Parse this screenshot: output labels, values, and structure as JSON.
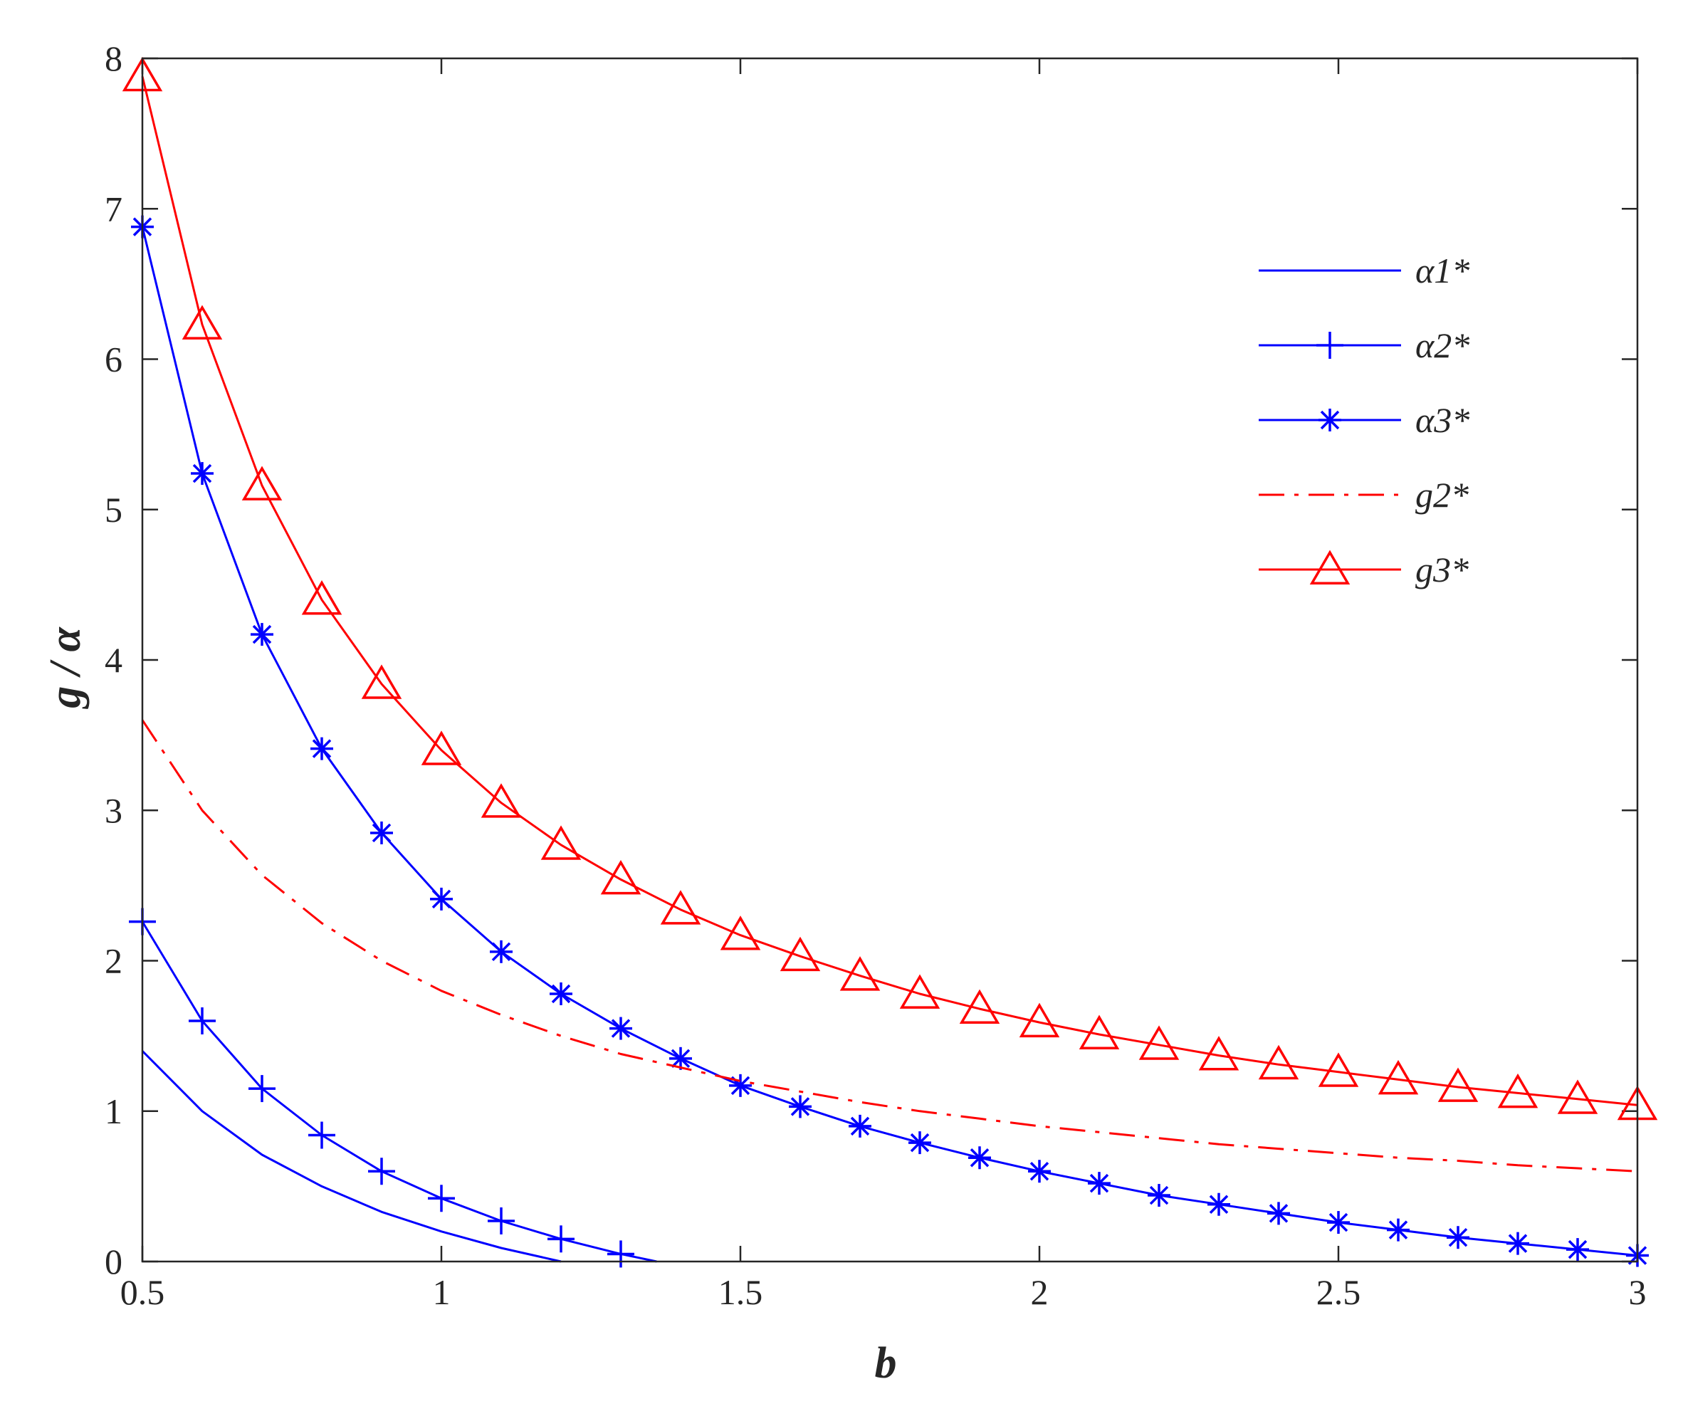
{
  "chart_data": {
    "type": "line",
    "title": "",
    "xlabel": "b",
    "ylabel": "g / α",
    "xlim": [
      0.5,
      3
    ],
    "ylim": [
      0,
      8
    ],
    "xticks": [
      0.5,
      1,
      1.5,
      2,
      2.5,
      3
    ],
    "xtick_labels": [
      "0.5",
      "1",
      "1.5",
      "2",
      "2.5",
      "3"
    ],
    "yticks": [
      0,
      1,
      2,
      3,
      4,
      5,
      6,
      7,
      8
    ],
    "ytick_labels": [
      "0",
      "1",
      "2",
      "3",
      "4",
      "5",
      "6",
      "7",
      "8"
    ],
    "grid": false,
    "legend_position": "top-right",
    "series": [
      {
        "name": "α1*",
        "color": "#0000ff",
        "marker": "none",
        "dash": "solid",
        "x": [
          0.5,
          0.6,
          0.7,
          0.8,
          0.9,
          1.0,
          1.1,
          1.2
        ],
        "y": [
          1.4,
          1.0,
          0.71,
          0.5,
          0.33,
          0.2,
          0.09,
          0.0
        ]
      },
      {
        "name": "α2*",
        "color": "#0000ff",
        "marker": "plus",
        "dash": "solid",
        "x": [
          0.5,
          0.6,
          0.7,
          0.8,
          0.9,
          1.0,
          1.1,
          1.2,
          1.3,
          1.36
        ],
        "y": [
          2.26,
          1.6,
          1.15,
          0.84,
          0.6,
          0.42,
          0.27,
          0.15,
          0.05,
          0.0
        ]
      },
      {
        "name": "α3*",
        "color": "#0000ff",
        "marker": "asterisk",
        "dash": "solid",
        "x": [
          0.5,
          0.6,
          0.7,
          0.8,
          0.9,
          1.0,
          1.1,
          1.2,
          1.3,
          1.4,
          1.5,
          1.6,
          1.7,
          1.8,
          1.9,
          2.0,
          2.1,
          2.2,
          2.3,
          2.4,
          2.5,
          2.6,
          2.7,
          2.8,
          2.9,
          3.0
        ],
        "y": [
          6.88,
          5.24,
          4.17,
          3.41,
          2.85,
          2.41,
          2.06,
          1.78,
          1.55,
          1.35,
          1.17,
          1.03,
          0.9,
          0.79,
          0.69,
          0.6,
          0.52,
          0.44,
          0.38,
          0.32,
          0.26,
          0.21,
          0.16,
          0.12,
          0.08,
          0.04
        ]
      },
      {
        "name": "g2*",
        "color": "#ff0000",
        "marker": "none",
        "dash": "dashdot",
        "x": [
          0.5,
          0.6,
          0.7,
          0.8,
          0.9,
          1.0,
          1.1,
          1.2,
          1.3,
          1.4,
          1.5,
          1.6,
          1.7,
          1.8,
          1.9,
          2.0,
          2.1,
          2.2,
          2.3,
          2.4,
          2.5,
          2.6,
          2.7,
          2.8,
          2.9,
          3.0
        ],
        "y": [
          3.6,
          3.0,
          2.57,
          2.25,
          2.0,
          1.8,
          1.64,
          1.5,
          1.38,
          1.29,
          1.2,
          1.13,
          1.06,
          1.0,
          0.95,
          0.9,
          0.86,
          0.82,
          0.78,
          0.75,
          0.72,
          0.69,
          0.67,
          0.64,
          0.62,
          0.6
        ]
      },
      {
        "name": "g3*",
        "color": "#ff0000",
        "marker": "triangle",
        "dash": "solid",
        "x": [
          0.5,
          0.6,
          0.7,
          0.8,
          0.9,
          1.0,
          1.1,
          1.2,
          1.3,
          1.4,
          1.5,
          1.6,
          1.7,
          1.8,
          1.9,
          2.0,
          2.1,
          2.2,
          2.3,
          2.4,
          2.5,
          2.6,
          2.7,
          2.8,
          2.9,
          3.0
        ],
        "y": [
          7.88,
          6.23,
          5.16,
          4.4,
          3.84,
          3.4,
          3.05,
          2.77,
          2.54,
          2.34,
          2.17,
          2.03,
          1.9,
          1.78,
          1.68,
          1.59,
          1.51,
          1.44,
          1.37,
          1.31,
          1.26,
          1.21,
          1.16,
          1.12,
          1.08,
          1.04
        ]
      }
    ]
  }
}
